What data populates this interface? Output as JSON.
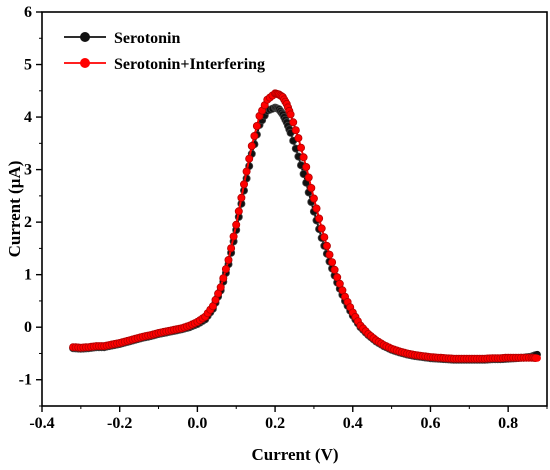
{
  "chart_data": {
    "type": "scatter",
    "xlabel": "Current (V)",
    "ylabel": "Current (µA)",
    "xlim": [
      -0.4,
      0.9
    ],
    "ylim": [
      -1.5,
      6
    ],
    "xticks": [
      -0.4,
      -0.2,
      0.0,
      0.2,
      0.4,
      0.6,
      0.8
    ],
    "xtick_labels": [
      "-0.4",
      "-0.2",
      "0.0",
      "0.2",
      "0.4",
      "0.6",
      "0.8"
    ],
    "yticks": [
      -1,
      0,
      1,
      2,
      3,
      4,
      5,
      6
    ],
    "ytick_labels": [
      "-1",
      "0",
      "1",
      "2",
      "3",
      "4",
      "5",
      "6"
    ],
    "legend_position": "top-left",
    "grid": false,
    "x": [
      -0.32,
      -0.3,
      -0.28,
      -0.26,
      -0.24,
      -0.22,
      -0.2,
      -0.18,
      -0.16,
      -0.14,
      -0.12,
      -0.1,
      -0.08,
      -0.06,
      -0.04,
      -0.02,
      0.0,
      0.02,
      0.04,
      0.06,
      0.08,
      0.1,
      0.12,
      0.14,
      0.16,
      0.18,
      0.2,
      0.21,
      0.22,
      0.23,
      0.24,
      0.26,
      0.28,
      0.3,
      0.32,
      0.34,
      0.36,
      0.38,
      0.4,
      0.42,
      0.44,
      0.46,
      0.48,
      0.5,
      0.52,
      0.54,
      0.56,
      0.58,
      0.6,
      0.62,
      0.64,
      0.66,
      0.68,
      0.7,
      0.72,
      0.74,
      0.76,
      0.78,
      0.8,
      0.82,
      0.84,
      0.86,
      0.875
    ],
    "series": [
      {
        "name": "Serotonin",
        "color": "#111111",
        "values": [
          -0.4,
          -0.41,
          -0.4,
          -0.38,
          -0.38,
          -0.35,
          -0.32,
          -0.28,
          -0.24,
          -0.2,
          -0.17,
          -0.13,
          -0.1,
          -0.07,
          -0.04,
          0.0,
          0.06,
          0.15,
          0.35,
          0.7,
          1.2,
          1.85,
          2.6,
          3.3,
          3.85,
          4.12,
          4.18,
          4.15,
          4.05,
          3.9,
          3.7,
          3.25,
          2.75,
          2.2,
          1.7,
          1.25,
          0.85,
          0.5,
          0.22,
          0.0,
          -0.15,
          -0.27,
          -0.36,
          -0.43,
          -0.48,
          -0.52,
          -0.55,
          -0.57,
          -0.59,
          -0.6,
          -0.61,
          -0.62,
          -0.62,
          -0.62,
          -0.62,
          -0.62,
          -0.61,
          -0.61,
          -0.6,
          -0.59,
          -0.58,
          -0.56,
          -0.52
        ]
      },
      {
        "name": "Serotonin+Interfering",
        "color": "#ff0000",
        "values": [
          -0.38,
          -0.39,
          -0.38,
          -0.36,
          -0.36,
          -0.33,
          -0.3,
          -0.26,
          -0.22,
          -0.18,
          -0.15,
          -0.11,
          -0.08,
          -0.05,
          -0.02,
          0.03,
          0.1,
          0.2,
          0.4,
          0.76,
          1.28,
          1.95,
          2.72,
          3.45,
          4.02,
          4.33,
          4.45,
          4.43,
          4.38,
          4.25,
          4.05,
          3.6,
          3.05,
          2.45,
          1.88,
          1.38,
          0.95,
          0.58,
          0.28,
          0.03,
          -0.13,
          -0.25,
          -0.34,
          -0.41,
          -0.46,
          -0.5,
          -0.53,
          -0.55,
          -0.57,
          -0.58,
          -0.59,
          -0.6,
          -0.6,
          -0.6,
          -0.6,
          -0.6,
          -0.59,
          -0.59,
          -0.58,
          -0.58,
          -0.58,
          -0.58,
          -0.59
        ]
      }
    ]
  }
}
